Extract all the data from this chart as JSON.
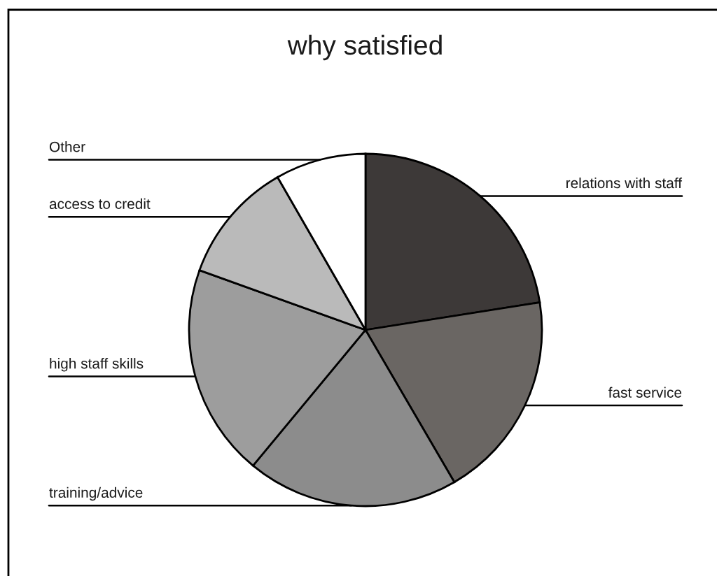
{
  "chart_data": {
    "type": "pie",
    "title": "why satisfied",
    "categories": [
      "relations with staff",
      "fast service",
      "training/advice",
      "high staff skills",
      "access to credit",
      "Other"
    ],
    "values": [
      22.5,
      19.1,
      19.4,
      19.5,
      11.2,
      8.3
    ],
    "colors": [
      "#3d3938",
      "#6a6663",
      "#8c8c8c",
      "#9d9d9d",
      "#bababa",
      "#ffffff"
    ]
  }
}
